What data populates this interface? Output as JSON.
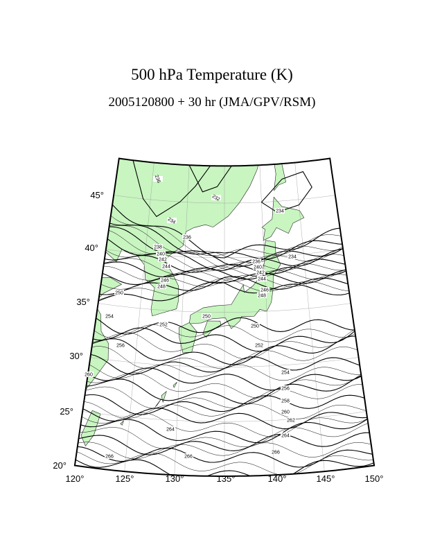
{
  "header": {
    "title": "500 hPa Temperature (K)",
    "subtitle": "2005120800 + 30 hr (JMA/GPV/RSM)"
  },
  "map": {
    "lat_labels": [
      "45°",
      "40°",
      "35°",
      "30°",
      "25°",
      "20°"
    ],
    "lon_labels": [
      "120°",
      "125°",
      "130°",
      "135°",
      "140°",
      "145°",
      "150°"
    ],
    "contour_labels": [
      236,
      232,
      234,
      234,
      236,
      234,
      238,
      240,
      242,
      244,
      246,
      248,
      250,
      254,
      252,
      250,
      250,
      256,
      252,
      260,
      254,
      256,
      258,
      260,
      262,
      264,
      264,
      266,
      266,
      266,
      236,
      240,
      242,
      244,
      246,
      248
    ]
  }
}
